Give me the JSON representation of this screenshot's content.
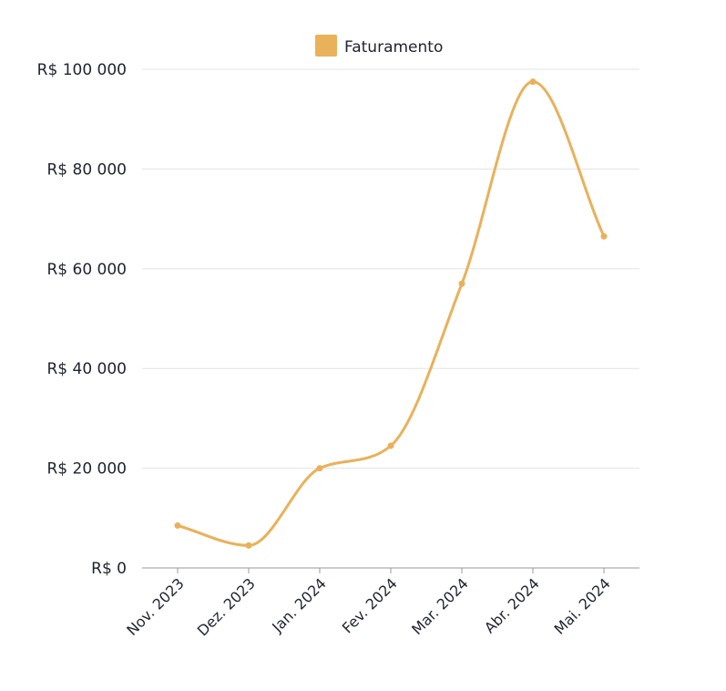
{
  "chart_data": {
    "type": "line",
    "categories": [
      "Nov. 2023",
      "Dez. 2023",
      "Jan. 2024",
      "Fev. 2024",
      "Mar. 2024",
      "Abr. 2024",
      "Mai. 2024"
    ],
    "series": [
      {
        "name": "Faturamento",
        "values": [
          8500,
          4500,
          20000,
          24500,
          57000,
          97500,
          66500
        ]
      }
    ],
    "yticks": [
      0,
      20000,
      40000,
      60000,
      80000,
      100000
    ],
    "ytick_labels": [
      "R$ 0",
      "R$ 20 000",
      "R$ 40 000",
      "R$ 60 000",
      "R$ 80 000",
      "R$ 100 000"
    ],
    "ylim": [
      0,
      100000
    ],
    "grid": true,
    "legend_position": "top-center",
    "color": "#E9B15A",
    "title": "",
    "xlabel": "",
    "ylabel": ""
  }
}
